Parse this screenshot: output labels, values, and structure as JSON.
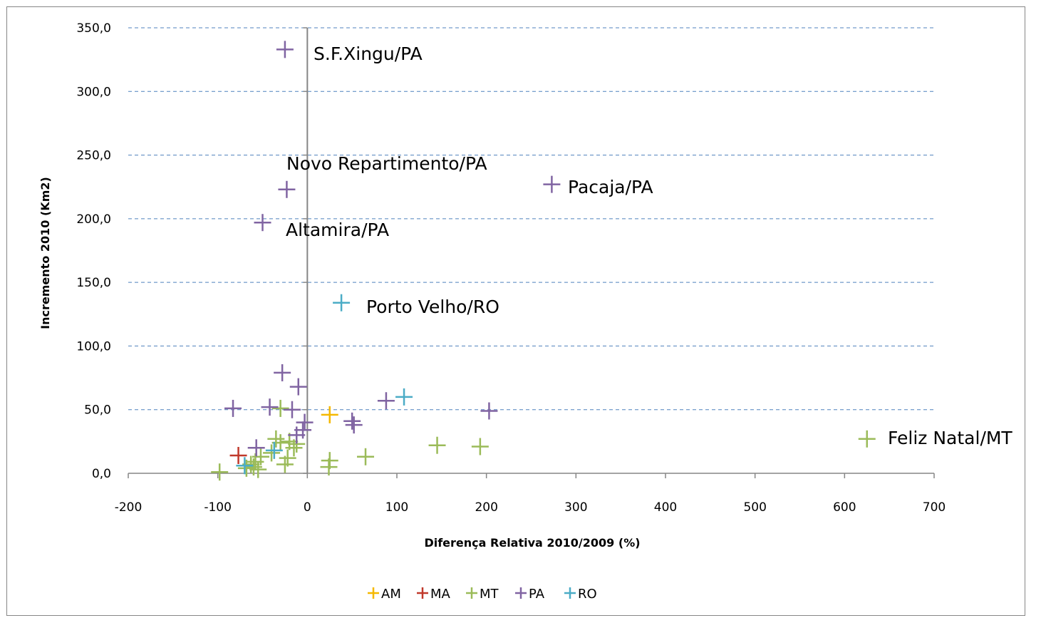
{
  "chart_data": {
    "type": "scatter",
    "title": "",
    "xlabel": "Diferença Relativa  2010/2009 (%)",
    "ylabel": "Incremento 2010 (Km2)",
    "xlim": [
      -200,
      700
    ],
    "ylim": [
      0,
      350
    ],
    "x_ticks": [
      -200,
      -100,
      0,
      100,
      200,
      300,
      400,
      500,
      600,
      700
    ],
    "x_tick_labels": [
      "-200",
      "-100",
      "0",
      "100",
      "200",
      "300",
      "400",
      "500",
      "600",
      "700"
    ],
    "y_ticks": [
      0,
      50,
      100,
      150,
      200,
      250,
      300,
      350
    ],
    "y_tick_labels": [
      "0,0",
      "50,0",
      "100,0",
      "150,0",
      "200,0",
      "250,0",
      "300,0",
      "350,0"
    ],
    "grid": "horizontal-dashed",
    "marker": "plus",
    "legend_position": "bottom",
    "series": [
      {
        "name": "AM",
        "color": "#F5B800",
        "points": [
          [
            25,
            46
          ]
        ]
      },
      {
        "name": "MA",
        "color": "#C0392B",
        "points": [
          [
            -77,
            14
          ]
        ]
      },
      {
        "name": "MT",
        "color": "#9BBB59",
        "points": [
          [
            625,
            27
          ],
          [
            145,
            22
          ],
          [
            193,
            21
          ],
          [
            65,
            13
          ],
          [
            25,
            10
          ],
          [
            24,
            5
          ],
          [
            -98,
            1
          ],
          [
            -60,
            5
          ],
          [
            -58,
            9
          ],
          [
            -52,
            13
          ],
          [
            -55,
            3
          ],
          [
            -63,
            7
          ],
          [
            -35,
            27
          ],
          [
            -30,
            24
          ],
          [
            -20,
            25
          ],
          [
            -12,
            23
          ],
          [
            -25,
            7
          ],
          [
            -22,
            12
          ],
          [
            -30,
            51
          ],
          [
            -68,
            4
          ],
          [
            -40,
            16
          ],
          [
            -15,
            20
          ]
        ]
      },
      {
        "name": "PA",
        "color": "#8064A2",
        "points": [
          [
            -25,
            333
          ],
          [
            273,
            227
          ],
          [
            -23,
            223
          ],
          [
            -50,
            197
          ],
          [
            -28,
            79
          ],
          [
            -10,
            68
          ],
          [
            -83,
            51
          ],
          [
            -42,
            52
          ],
          [
            -17,
            50
          ],
          [
            88,
            57
          ],
          [
            203,
            49
          ],
          [
            -3,
            40
          ],
          [
            -5,
            34
          ],
          [
            50,
            41
          ],
          [
            52,
            38
          ],
          [
            -12,
            30
          ],
          [
            -57,
            20
          ]
        ]
      },
      {
        "name": "RO",
        "color": "#4BACC6",
        "points": [
          [
            38,
            134
          ],
          [
            108,
            60
          ],
          [
            -37,
            18
          ],
          [
            -70,
            6
          ]
        ]
      }
    ],
    "annotations": [
      {
        "text": "S.F.Xingu/PA"
      },
      {
        "text": "Novo Repartimento/PA"
      },
      {
        "text": "Pacaja/PA"
      },
      {
        "text": "Altamira/PA"
      },
      {
        "text": "Porto Velho/RO"
      },
      {
        "text": "Feliz Natal/MT"
      }
    ]
  }
}
